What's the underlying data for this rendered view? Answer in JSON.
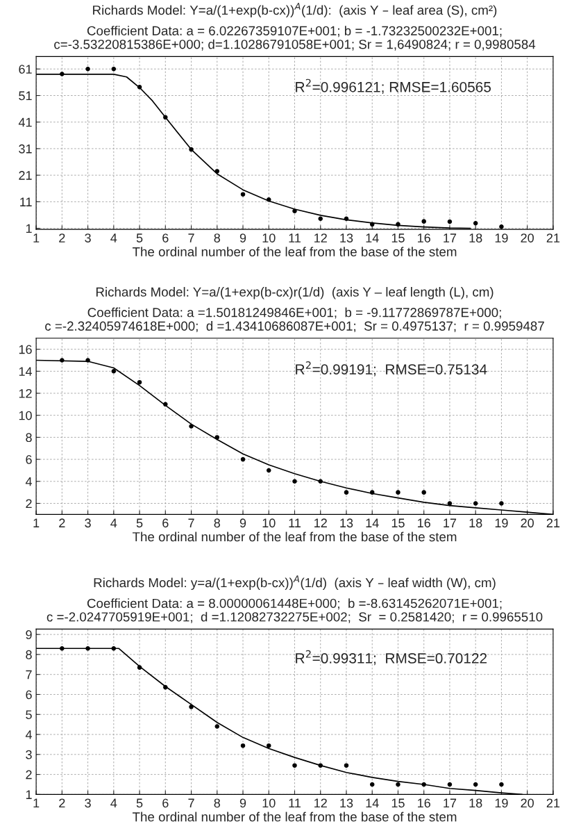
{
  "chart_data": [
    {
      "type": "scatter",
      "title": "Richards Model: Y=a/(1+exp(b-cx))$^{A}$(1/d):  (axis Y – leaf area (S), cm²)",
      "subtitle": "Coefficient Data: a = 6.02267359107E+001; b = -1.73232500232E+001;\nc=-3.53220815386E+000; d=1.10286791058E+001; Sr = 1,6490824; r = 0,9980584",
      "xlabel": "The ordinal number of the leaf from the base of the stem",
      "annotations": [
        "R$^{2}$=0.996121; RMSE=1.60565"
      ],
      "xlim": [
        1,
        21
      ],
      "xticks": [
        1,
        2,
        3,
        4,
        5,
        6,
        7,
        8,
        9,
        10,
        11,
        12,
        13,
        14,
        15,
        16,
        17,
        18,
        19,
        20,
        21
      ],
      "ylim": [
        0.6,
        65.7
      ],
      "yticks": [
        1,
        11,
        21,
        31,
        41,
        51,
        61
      ],
      "grid": true,
      "series": [
        {
          "marker": "circle",
          "color": "#000000",
          "x": [
            2,
            3,
            4,
            5,
            6,
            7,
            8,
            9,
            10,
            11,
            12,
            13,
            14,
            15,
            16,
            17,
            18,
            19
          ],
          "values": [
            59.1,
            61,
            61,
            54.2,
            42.8,
            30.7,
            22.5,
            13.8,
            11.8,
            7.5,
            4.6,
            4.6,
            2.5,
            2.5,
            3.6,
            3.5,
            2.9,
            1.6
          ]
        },
        {
          "type": "line",
          "marker": "none",
          "line_style": "solid",
          "color": "#000000",
          "x": [
            1,
            4,
            4.5,
            5,
            5.5,
            6,
            7,
            8,
            9,
            10,
            11,
            12,
            13,
            14,
            15,
            16,
            17,
            17.8
          ],
          "values": [
            59,
            59,
            58,
            54,
            49,
            42.8,
            30.7,
            21.5,
            15.5,
            11.3,
            8.2,
            5.9,
            4.2,
            3,
            2.1,
            1.5,
            1.1,
            1
          ]
        }
      ]
    },
    {
      "type": "scatter",
      "title": "Richards Model: Y=a/(1+exp(b-cx)r(1/d)  (axis Y – leaf length (L), cm)",
      "subtitle": "Coefficient Data: a =1.50181249846E+001;  b = -9.11772869787E+000;\nc =-2.32405974618E+000;  d =1.43410686087E+001;  Sr = 0.4975137;  r = 0.9959487",
      "xlabel": "The ordinal number of the leaf from the base of the stem",
      "annotations": [
        "R$^{2}$=0.99191;  RMSE=0.75134"
      ],
      "xlim": [
        1,
        21
      ],
      "xticks": [
        1,
        2,
        3,
        4,
        5,
        6,
        7,
        8,
        9,
        10,
        11,
        12,
        13,
        14,
        15,
        16,
        17,
        18,
        19,
        20,
        21
      ],
      "ylim": [
        1,
        17
      ],
      "yticks": [
        2,
        4,
        6,
        8,
        10,
        12,
        14,
        16
      ],
      "grid": true,
      "series": [
        {
          "marker": "circle",
          "color": "#000000",
          "x": [
            2,
            3,
            4,
            5,
            6,
            7,
            8,
            9,
            10,
            11,
            12,
            13,
            14,
            15,
            16,
            17,
            18,
            19
          ],
          "values": [
            15,
            15,
            14,
            13,
            11,
            9,
            8,
            6,
            5,
            4,
            4,
            3,
            3,
            3,
            3,
            2,
            2,
            2
          ]
        },
        {
          "type": "line",
          "marker": "none",
          "line_style": "solid",
          "color": "#000000",
          "x": [
            1,
            3,
            4,
            5,
            6,
            7,
            8,
            9,
            10,
            11,
            12,
            13,
            14,
            15,
            16,
            17,
            18,
            19,
            20,
            21
          ],
          "values": [
            15,
            14.9,
            14.3,
            12.7,
            10.9,
            9.2,
            7.8,
            6.5,
            5.5,
            4.7,
            4,
            3.4,
            2.9,
            2.5,
            2.1,
            1.8,
            1.6,
            1.4,
            1.2,
            1
          ]
        }
      ]
    },
    {
      "type": "scatter",
      "title": "Richards Model: y=a/(1+exp(b-cx))$^{A}$(1/d)  (axis Y – leaf width (W), cm)",
      "subtitle": "Coefficient Data: a = 8.00000061448E+000;  b =-8.63145262071E+001;\nc =-2.0247705919E+001;  d =1.12082732275E+002;  Sr  = 0.2581420;  r = 0.9965510",
      "xlabel": "The ordinal number of the leaf from the base of the stem",
      "annotations": [
        "R$^{2}$=0.99311;  RMSE=0.70122"
      ],
      "xlim": [
        1,
        21
      ],
      "xticks": [
        1,
        2,
        3,
        4,
        5,
        6,
        7,
        8,
        9,
        10,
        11,
        12,
        13,
        14,
        15,
        16,
        17,
        18,
        19,
        20,
        21
      ],
      "ylim": [
        1,
        9.27
      ],
      "yticks": [
        1,
        2,
        3,
        4,
        5,
        6,
        7,
        8,
        9
      ],
      "grid": true,
      "series": [
        {
          "marker": "circle",
          "color": "#000000",
          "x": [
            2,
            3,
            4,
            5,
            6,
            7,
            8,
            9,
            10,
            11,
            12,
            13,
            14,
            15,
            16,
            17,
            18,
            19
          ],
          "values": [
            8.3,
            8.3,
            8.3,
            7.35,
            6.36,
            5.38,
            4.4,
            3.44,
            3.44,
            2.45,
            2.45,
            2.45,
            1.5,
            1.5,
            1.5,
            1.5,
            1.5,
            1.5
          ]
        },
        {
          "type": "line",
          "marker": "none",
          "line_style": "solid",
          "color": "#000000",
          "x": [
            1,
            4.2,
            5,
            6,
            7,
            8,
            9,
            10,
            11,
            12,
            13,
            14,
            15,
            16,
            17,
            18,
            19,
            19.8
          ],
          "values": [
            8.3,
            8.3,
            7.4,
            6.4,
            5.5,
            4.6,
            3.85,
            3.3,
            2.85,
            2.45,
            2.1,
            1.85,
            1.65,
            1.5,
            1.3,
            1.2,
            1.08,
            1
          ]
        }
      ]
    }
  ]
}
